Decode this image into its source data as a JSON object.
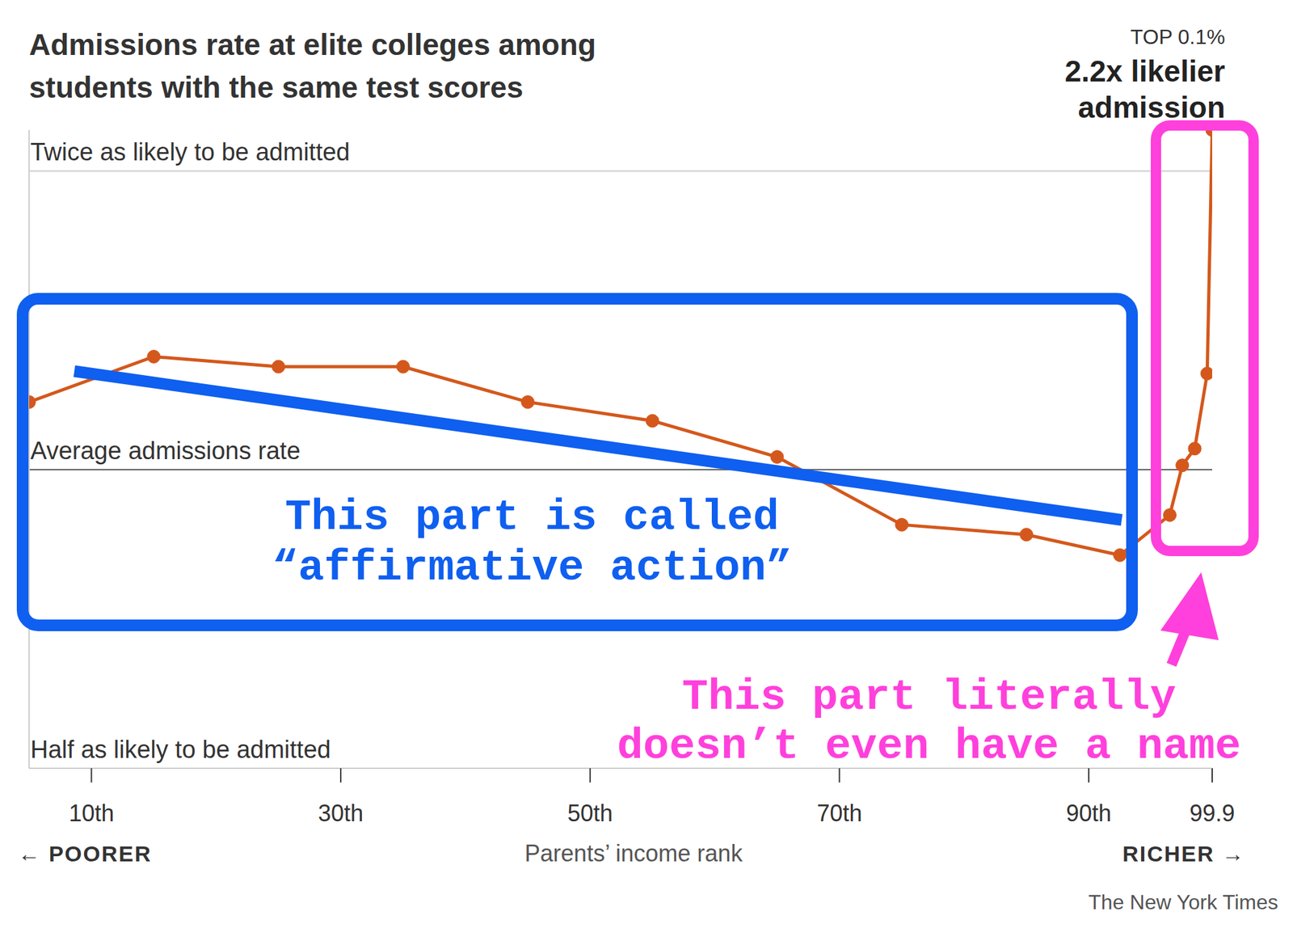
{
  "chart_data": {
    "type": "line",
    "title": "Admissions rate at elite colleges among students with the same test scores",
    "x_label": "Parents’ income rank",
    "x": [
      5,
      15,
      25,
      35,
      45,
      55,
      65,
      75,
      85,
      92.5,
      96.5,
      97.5,
      98.5,
      99.5,
      99.9
    ],
    "values": [
      1.17,
      1.3,
      1.27,
      1.27,
      1.17,
      1.12,
      1.03,
      0.88,
      0.86,
      0.82,
      0.9,
      1.01,
      1.05,
      1.25,
      2.2
    ],
    "color": "#d4581c",
    "marker": "circle",
    "xlim": [
      5,
      99.9
    ],
    "xticks": [
      {
        "value": 10,
        "label": "10th"
      },
      {
        "value": 30,
        "label": "30th"
      },
      {
        "value": 50,
        "label": "50th"
      },
      {
        "value": 70,
        "label": "70th"
      },
      {
        "value": 90,
        "label": "90th"
      },
      99.9
    ],
    "ylim": [
      0.5,
      2.2
    ],
    "yticks": [
      {
        "value": 0.5,
        "label": "Half as likely to be admitted"
      },
      {
        "value": 1,
        "label": "Average admissions rate"
      },
      {
        "value": 2,
        "label": "Twice as likely to be admitted"
      }
    ],
    "log": "y",
    "grid": true,
    "annotations": [
      "TOP 0.1%",
      "2.2x likelier admission",
      "← POORER",
      "RICHER →",
      "This part is called “affirmative action”",
      "This part literally doesn’t even have a name"
    ],
    "source": "The New York Times"
  }
}
